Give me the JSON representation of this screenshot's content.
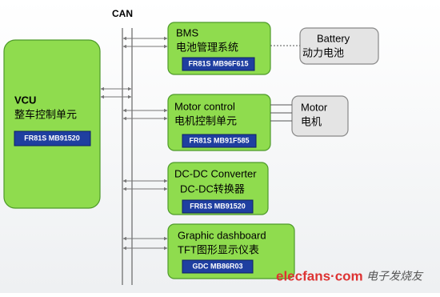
{
  "bus": "CAN",
  "vcu": {
    "title": "VCU",
    "subtitle": "整车控制单元",
    "chip": "FR81S MB91520"
  },
  "nodes": [
    {
      "title": "BMS",
      "subtitle": "电池管理系统",
      "chip": "FR81S MB96F615"
    },
    {
      "title": "Motor control",
      "subtitle": "电机控制单元",
      "chip": "FR81S MB91F585"
    },
    {
      "title": "DC-DC Converter",
      "subtitle": "DC-DC转换器",
      "chip": "FR81S MB91520"
    },
    {
      "title": "Graphic dashboard",
      "subtitle": "TFT图形显示仪表",
      "chip": "GDC MB86R03"
    }
  ],
  "devices": [
    {
      "title": "Battery",
      "subtitle": "动力电池"
    },
    {
      "title": "Motor",
      "subtitle": "电机"
    }
  ],
  "watermark": {
    "site": "elecfans·com",
    "name": "电子发烧友"
  }
}
